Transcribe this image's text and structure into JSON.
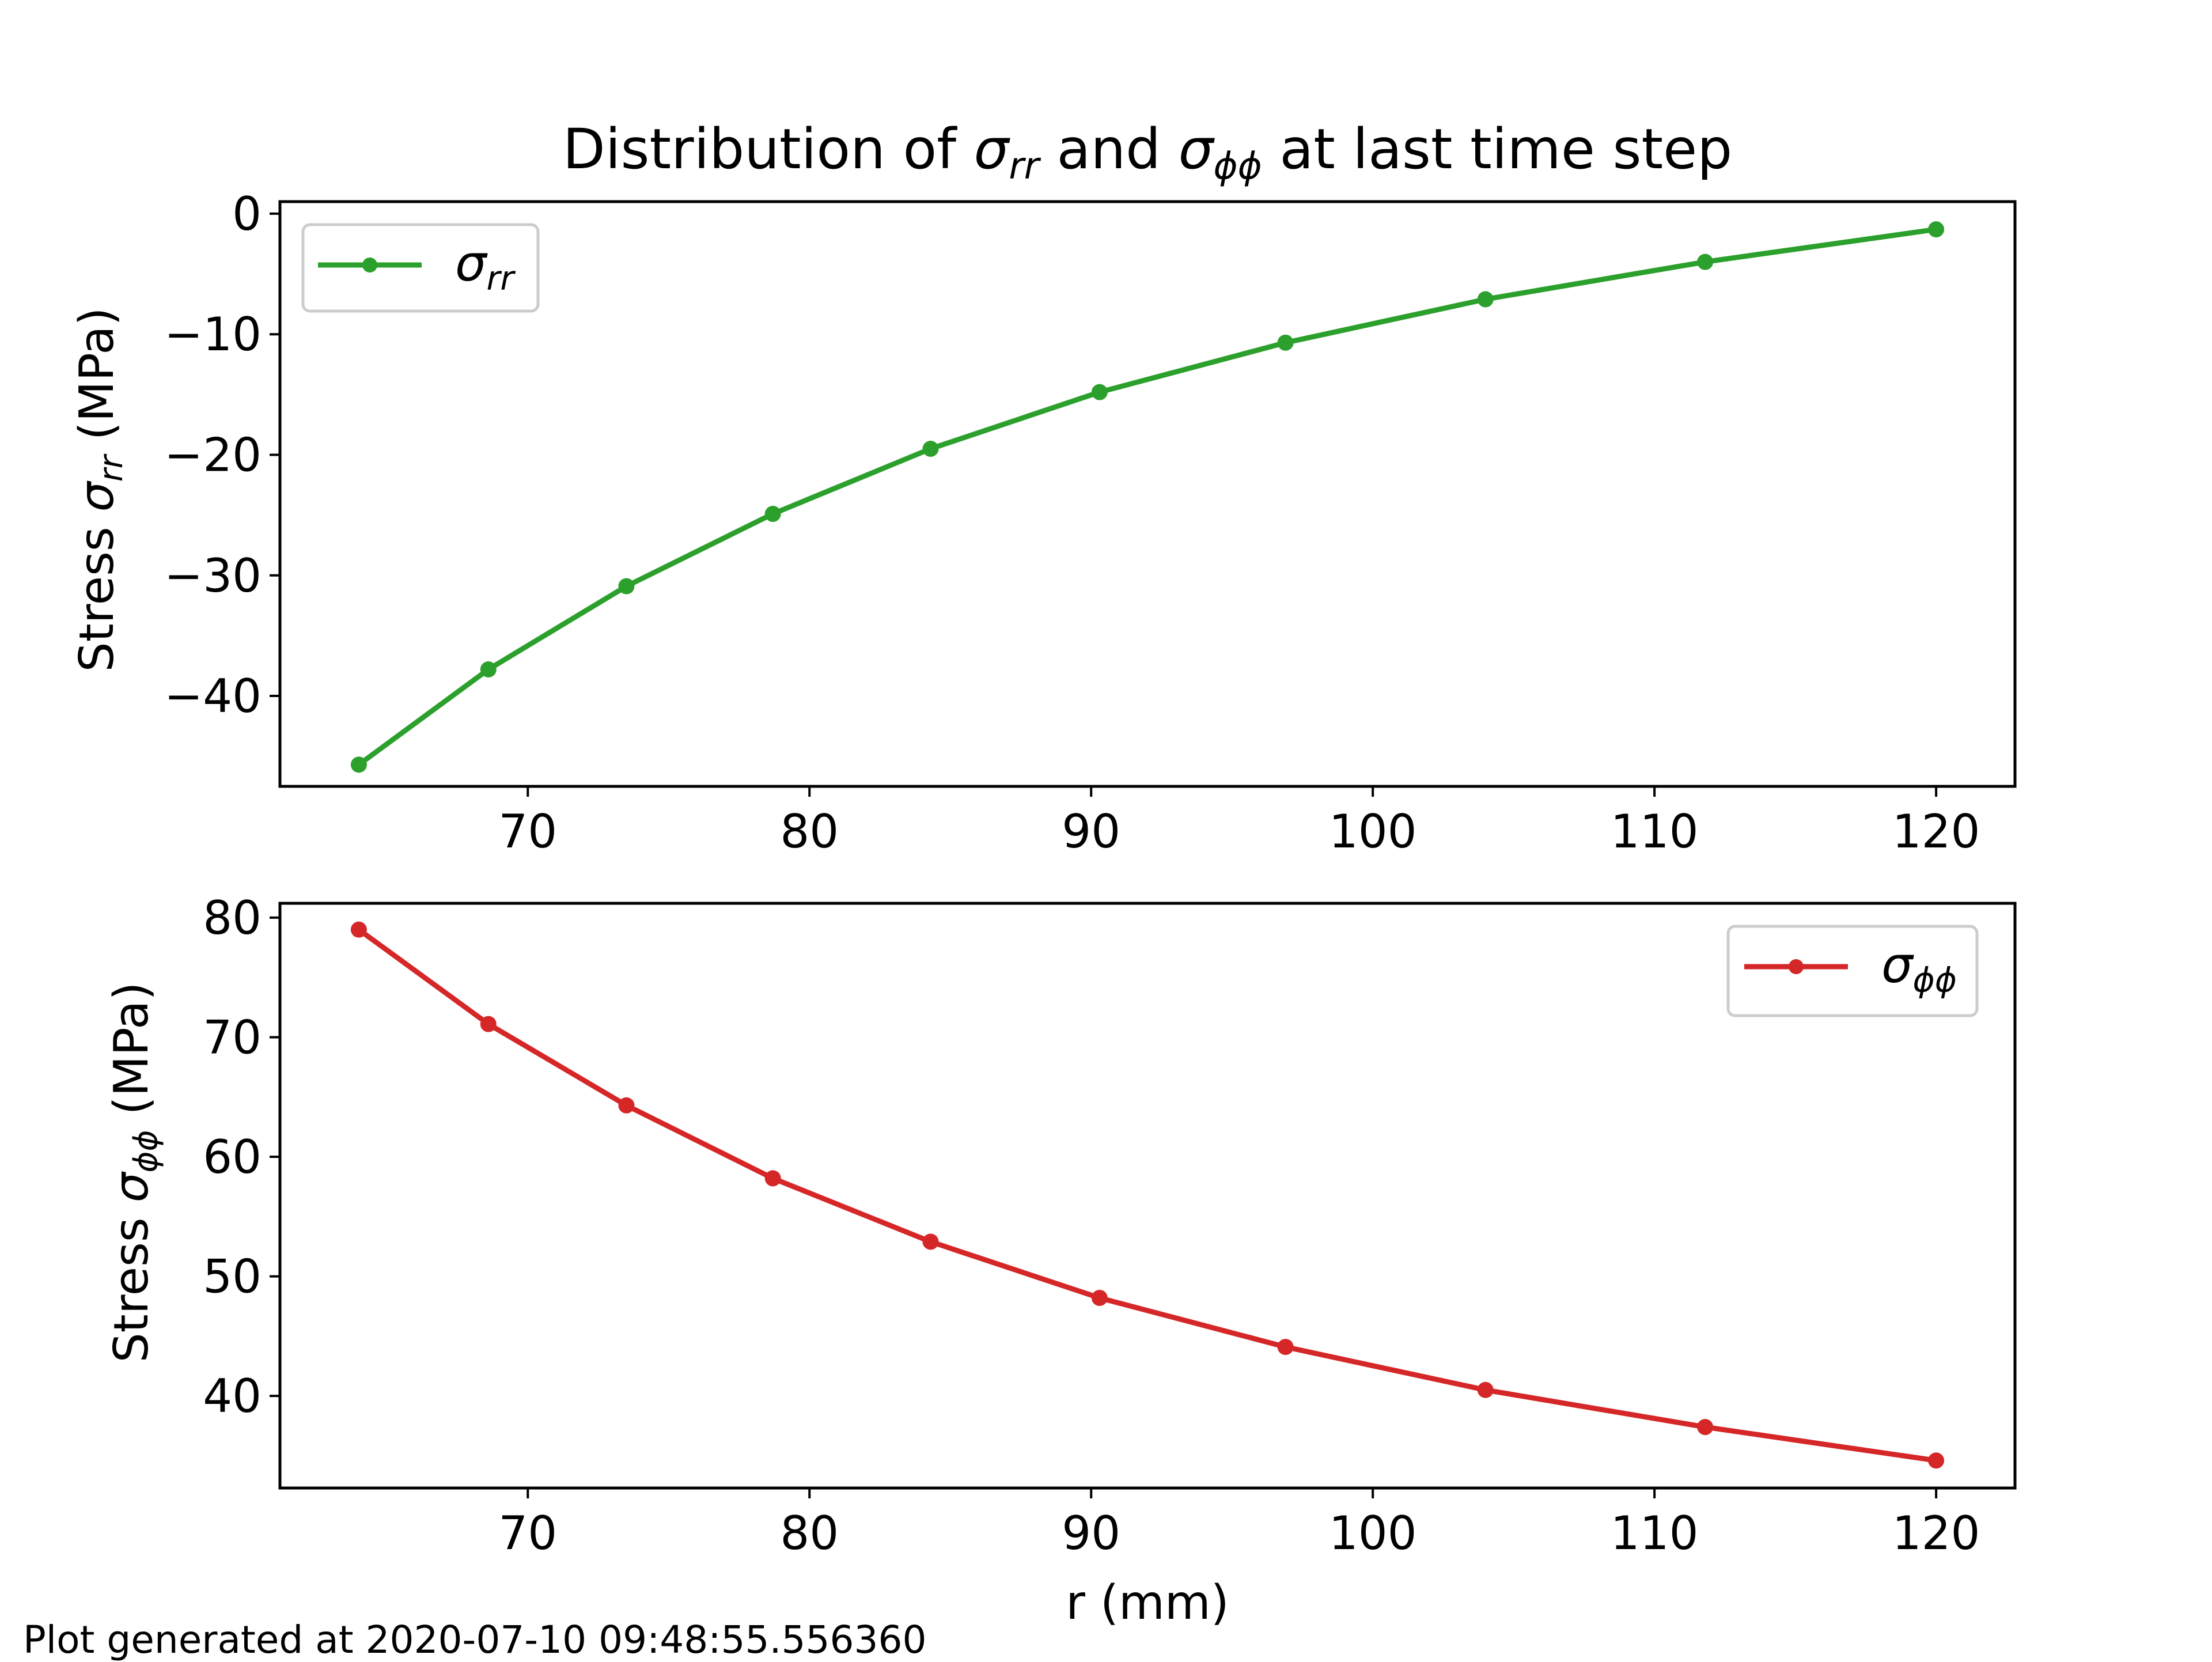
{
  "figure": {
    "title_parts": [
      "Distribution of ",
      "σ",
      "rr",
      " and ",
      "σ",
      "ϕϕ",
      " at last time step"
    ],
    "footer": "Plot generated at 2020-07-10 09:48:55.556360"
  },
  "chart_data": [
    {
      "type": "line",
      "ylabel_parts": [
        "Stress ",
        "σ",
        "rr",
        " (MPa)"
      ],
      "xlabel": "",
      "x": [
        64,
        68.6,
        73.5,
        78.7,
        84.3,
        90.3,
        96.9,
        104.0,
        111.8,
        120
      ],
      "xlim": [
        61.2,
        122.8
      ],
      "ylim": [
        -47.5,
        1.0
      ],
      "xticks": [
        70,
        80,
        90,
        100,
        110,
        120
      ],
      "yticks": [
        0,
        -10,
        -20,
        -30,
        -40
      ],
      "ytick_labels": [
        "0",
        "−10",
        "−20",
        "−30",
        "−40"
      ],
      "legend_position": "upper-left",
      "series": [
        {
          "name_parts": [
            "σ",
            "rr"
          ],
          "color": "#2ca02c",
          "values": [
            -45.7,
            -37.8,
            -30.9,
            -24.9,
            -19.5,
            -14.8,
            -10.7,
            -7.1,
            -4.0,
            -1.3
          ]
        }
      ]
    },
    {
      "type": "line",
      "ylabel_parts": [
        "Stress ",
        "σ",
        "ϕϕ",
        " (MPa)"
      ],
      "xlabel": "r (mm)",
      "x": [
        64,
        68.6,
        73.5,
        78.7,
        84.3,
        90.3,
        96.9,
        104.0,
        111.8,
        120
      ],
      "xlim": [
        61.2,
        122.8
      ],
      "ylim": [
        32.3,
        81.2
      ],
      "xticks": [
        70,
        80,
        90,
        100,
        110,
        120
      ],
      "yticks": [
        80,
        70,
        60,
        50,
        40
      ],
      "ytick_labels": [
        "80",
        "70",
        "60",
        "50",
        "40"
      ],
      "legend_position": "upper-right",
      "series": [
        {
          "name_parts": [
            "σ",
            "ϕϕ"
          ],
          "color": "#d62728",
          "values": [
            79.0,
            71.1,
            64.3,
            58.2,
            52.9,
            48.2,
            44.1,
            40.5,
            37.4,
            34.6
          ]
        }
      ]
    }
  ]
}
